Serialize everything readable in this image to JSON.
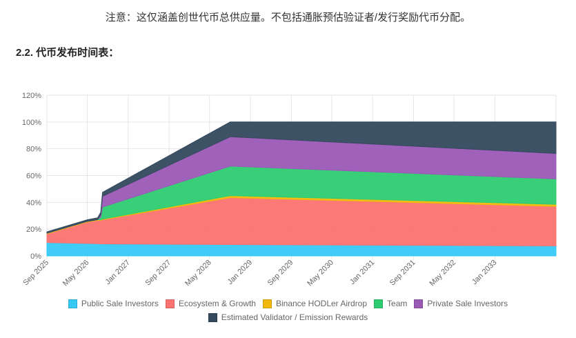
{
  "note": "注意：这仅涵盖创世代币总供应量。不包括通胀预估验证者/发行奖励代币分配。",
  "section_title": "2.2. 代币发布时间表：",
  "chart_data": {
    "type": "area",
    "stacked": true,
    "title": "",
    "xlabel": "",
    "ylabel": "",
    "x_range": [
      2025.67,
      2034.0
    ],
    "x_ticks": [
      {
        "label": "Sep 2025",
        "t": 2025.67
      },
      {
        "label": "May 2026",
        "t": 2026.33
      },
      {
        "label": "Jan 2027",
        "t": 2027.0
      },
      {
        "label": "Sep 2027",
        "t": 2027.67
      },
      {
        "label": "May 2028",
        "t": 2028.33
      },
      {
        "label": "Jan 2029",
        "t": 2029.0
      },
      {
        "label": "Sep 2029",
        "t": 2029.67
      },
      {
        "label": "May 2030",
        "t": 2030.33
      },
      {
        "label": "Jan 2031",
        "t": 2031.0
      },
      {
        "label": "Sep 2031",
        "t": 2031.67
      },
      {
        "label": "May 2032",
        "t": 2032.33
      },
      {
        "label": "Jan 2033",
        "t": 2033.0
      }
    ],
    "y_ticks": [
      "0%",
      "20%",
      "40%",
      "60%",
      "80%",
      "100%",
      "120%"
    ],
    "ylim": [
      0,
      120
    ],
    "x": [
      2025.67,
      2026.33,
      2026.5,
      2026.55,
      2026.58,
      2028.67,
      2034.0
    ],
    "series": [
      {
        "name": "Public Sale Investors",
        "color": "#36c9f5",
        "values": [
          10,
          9.3,
          9.1,
          9.0,
          9.0,
          8.5,
          7.5
        ]
      },
      {
        "name": "Ecosystem & Growth",
        "color": "#fb7270",
        "values": [
          6.5,
          16,
          17.5,
          17.5,
          18,
          35,
          29.5
        ]
      },
      {
        "name": "Binance HODLer Airdrop",
        "color": "#f0b90b",
        "values": [
          0.5,
          0.5,
          0.5,
          0.5,
          0.5,
          1.5,
          1.5
        ]
      },
      {
        "name": "Team",
        "color": "#2ecc71",
        "values": [
          0,
          0,
          0,
          2,
          9,
          22,
          19
        ]
      },
      {
        "name": "Private Sale Investors",
        "color": "#9b59b6",
        "values": [
          0,
          0,
          0,
          2,
          8,
          22,
          19
        ]
      },
      {
        "name": "Estimated Validator / Emission Rewards",
        "color": "#34495e",
        "values": [
          1,
          1.2,
          1.4,
          1.5,
          3,
          11,
          23.5
        ]
      }
    ],
    "legend_position": "bottom",
    "grid": true
  }
}
